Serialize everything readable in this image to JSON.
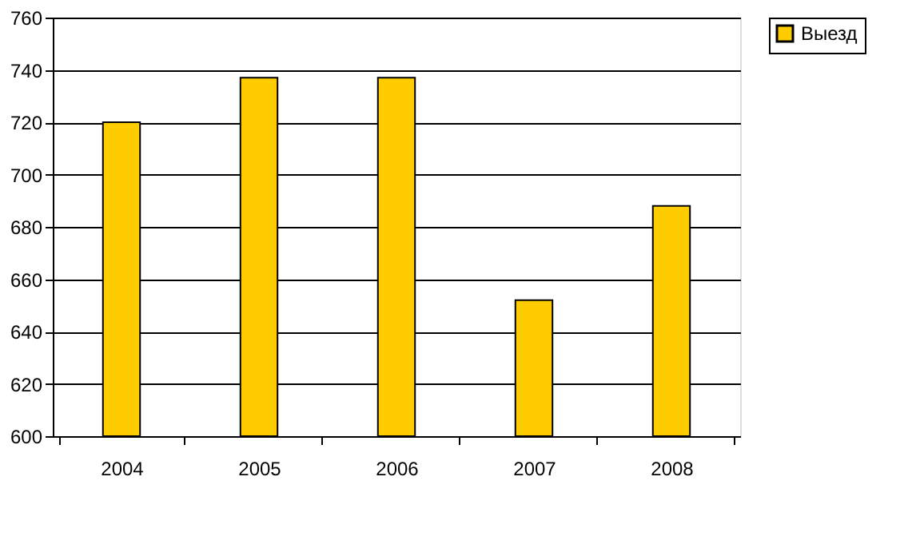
{
  "chart_data": {
    "type": "bar",
    "categories": [
      "2004",
      "2005",
      "2006",
      "2007",
      "2008"
    ],
    "series": [
      {
        "name": "Выезд",
        "color": "#ffcc00",
        "values": [
          720,
          737,
          737,
          652,
          688
        ]
      }
    ],
    "ylim": [
      600,
      760
    ],
    "yticks": [
      600,
      620,
      640,
      660,
      680,
      700,
      720,
      740,
      760
    ],
    "grid": "y",
    "legend": "right"
  }
}
